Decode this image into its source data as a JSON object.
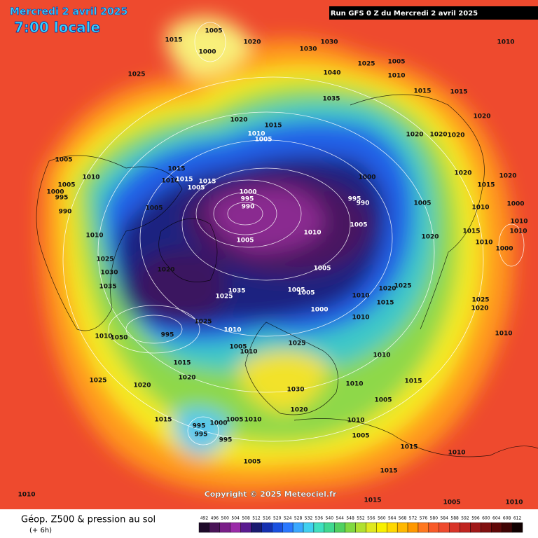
{
  "header": {
    "date": "Mercredi 2 avril 2025",
    "time": "7:00 locale",
    "run": "Run GFS 0 Z du Mercredi 2 avril 2025"
  },
  "isobar_labels": [
    "1015",
    "1005",
    "1000",
    "1020",
    "1025",
    "1030",
    "1030",
    "1025",
    "1005",
    "1010",
    "1040",
    "1010",
    "1015",
    "1015",
    "1035",
    "1020",
    "1020",
    "1015",
    "1010",
    "1005",
    "1020",
    "1020",
    "1020",
    "1005",
    "1010",
    "1015",
    "1010",
    "1015",
    "1005",
    "1015",
    "1000",
    "995",
    "990",
    "1000",
    "995",
    "990",
    "1020",
    "1020",
    "1015",
    "1005",
    "1000",
    "995",
    "990",
    "1005",
    "1005",
    "1010",
    "1000",
    "1005",
    "1010",
    "1015",
    "1010",
    "1005",
    "1010",
    "1010",
    "1000",
    "1020",
    "1010",
    "1025",
    "1030",
    "1035",
    "1020",
    "1005",
    "1035",
    "1025",
    "1020",
    "1025",
    "1010",
    "1005",
    "1005",
    "1000",
    "1015",
    "1025",
    "1020",
    "1010",
    "1025",
    "1010",
    "1010",
    "1050",
    "995",
    "1025",
    "1005",
    "1010",
    "1010",
    "1015",
    "1020",
    "1025",
    "1020",
    "1010",
    "1015",
    "1030",
    "1005",
    "1010",
    "1020",
    "1015",
    "995",
    "995",
    "1000",
    "1005",
    "1010",
    "1010",
    "1005",
    "995",
    "1015",
    "1010",
    "1005",
    "1015",
    "1015",
    "1005",
    "1010",
    "1010"
  ],
  "copyright": "Copyright © 2025 Meteociel.fr",
  "legend": {
    "title": "Géop. Z500 & pression au sol",
    "subtitle": "(+ 6h)",
    "scale": [
      492,
      496,
      500,
      504,
      508,
      512,
      516,
      520,
      524,
      528,
      532,
      536,
      540,
      544,
      548,
      552,
      556,
      560,
      564,
      568,
      572,
      576,
      580,
      584,
      588,
      592,
      596,
      600,
      604,
      608,
      612
    ]
  }
}
